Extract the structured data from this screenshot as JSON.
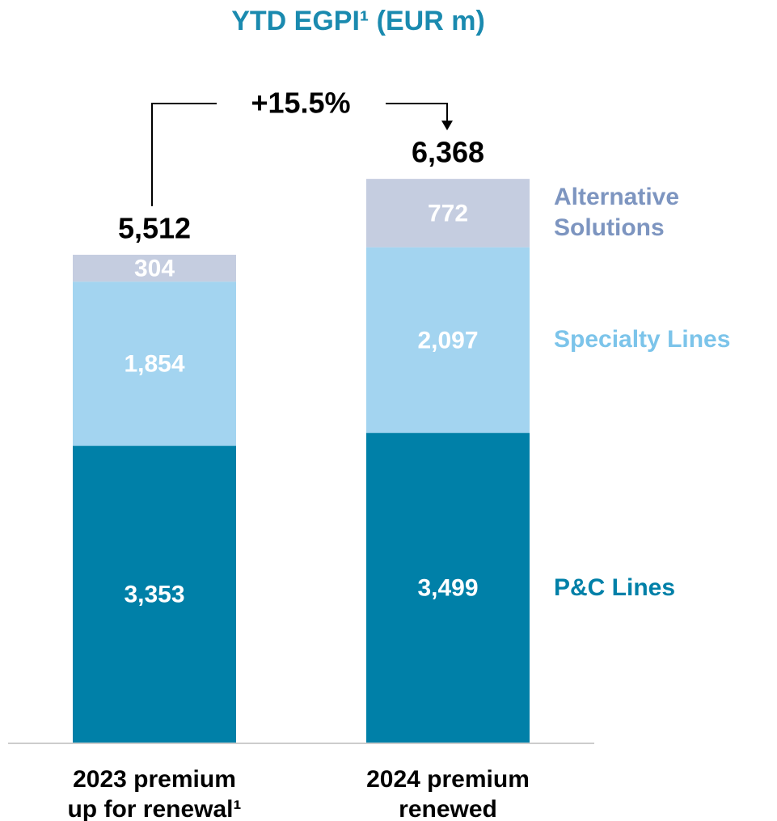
{
  "chart_data": {
    "type": "stacked-bar",
    "title": "YTD EGPI¹ (EUR m)",
    "categories": [
      [
        "2023 premium",
        "up for renewal¹"
      ],
      [
        "2024 premium",
        "renewed"
      ]
    ],
    "series": [
      {
        "name": "P&C Lines",
        "color": "#0080a8",
        "label_color": "#0080a8",
        "values": [
          3353,
          3499
        ],
        "value_labels": [
          "3,353",
          "3,499"
        ]
      },
      {
        "name": "Specialty Lines",
        "color": "#a3d4f0",
        "label_color": "#7cc4ea",
        "values": [
          1854,
          2097
        ],
        "value_labels": [
          "1,854",
          "2,097"
        ]
      },
      {
        "name": "Alternative Solutions",
        "color": "#c5cde0",
        "label_color": "#7d95c0",
        "values": [
          304,
          772
        ],
        "value_labels": [
          "304",
          "772"
        ]
      }
    ],
    "totals": [
      5512,
      6368
    ],
    "total_labels": [
      "5,512",
      "6,368"
    ],
    "annotation": "+15.5%",
    "ylim": [
      0,
      7000
    ]
  }
}
